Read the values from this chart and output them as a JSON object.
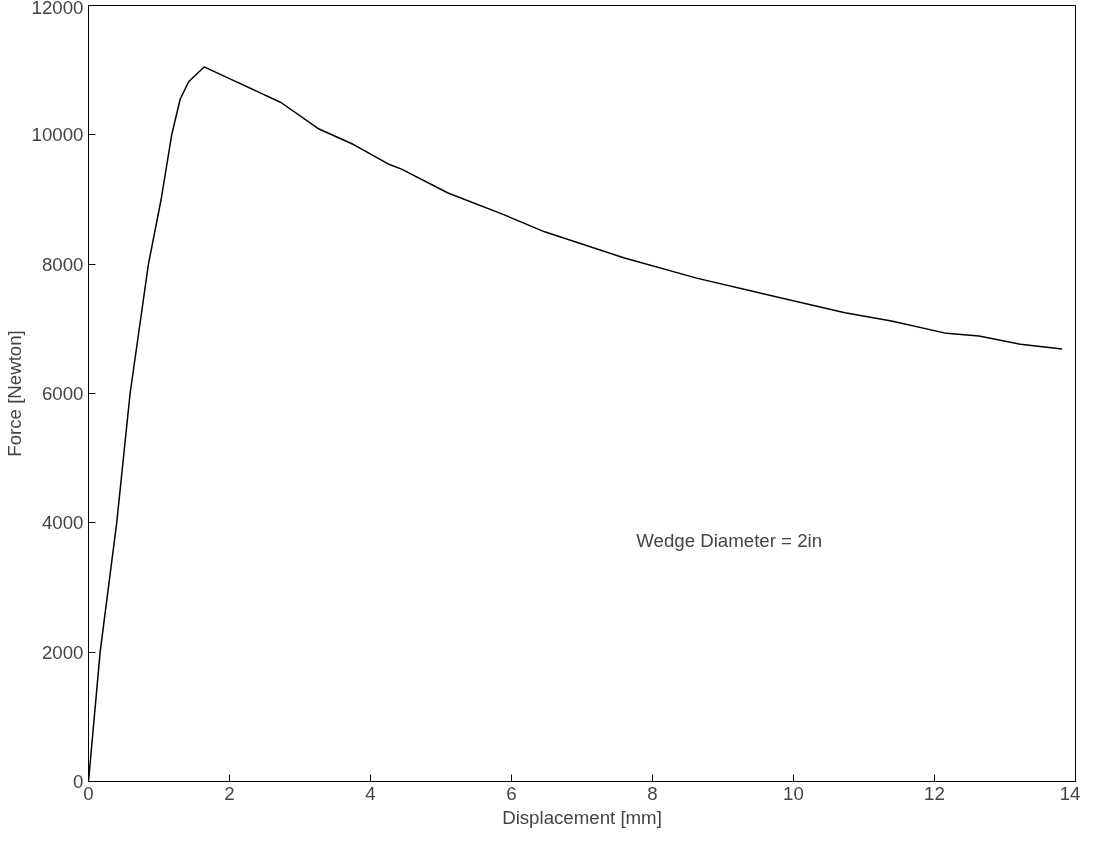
{
  "chart_data": {
    "type": "line",
    "xlabel": "Displacement [mm]",
    "ylabel": "Force [Newton]",
    "x": [
      0,
      0.165,
      0.4,
      0.59,
      0.85,
      1.03,
      1.18,
      1.3,
      1.42,
      1.64,
      2.0,
      2.73,
      3.27,
      3.76,
      4.25,
      4.44,
      5.1,
      5.88,
      6.47,
      7.59,
      8.64,
      9.42,
      10.73,
      11.39,
      12.17,
      12.63,
      13.22,
      13.81
    ],
    "series": [
      {
        "color": "#000000",
        "values": [
          0,
          2000,
          4000,
          6000,
          8000,
          9000,
          10000,
          10550,
          10820,
          11050,
          10870,
          10500,
          10090,
          9850,
          9550,
          9470,
          9100,
          8770,
          8500,
          8100,
          7780,
          7580,
          7250,
          7120,
          6930,
          6890,
          6760,
          6690
        ]
      }
    ],
    "xlim": [
      0,
      14
    ],
    "ylim": [
      0,
      12000
    ],
    "xticks": [
      0,
      2,
      4,
      6,
      8,
      10,
      12,
      14
    ],
    "yticks": [
      0,
      2000,
      4000,
      6000,
      8000,
      10000,
      12000
    ],
    "grid": false,
    "marker": "none",
    "line_style": "solid",
    "annotations": [
      "Wedge Diameter = 2in"
    ]
  }
}
